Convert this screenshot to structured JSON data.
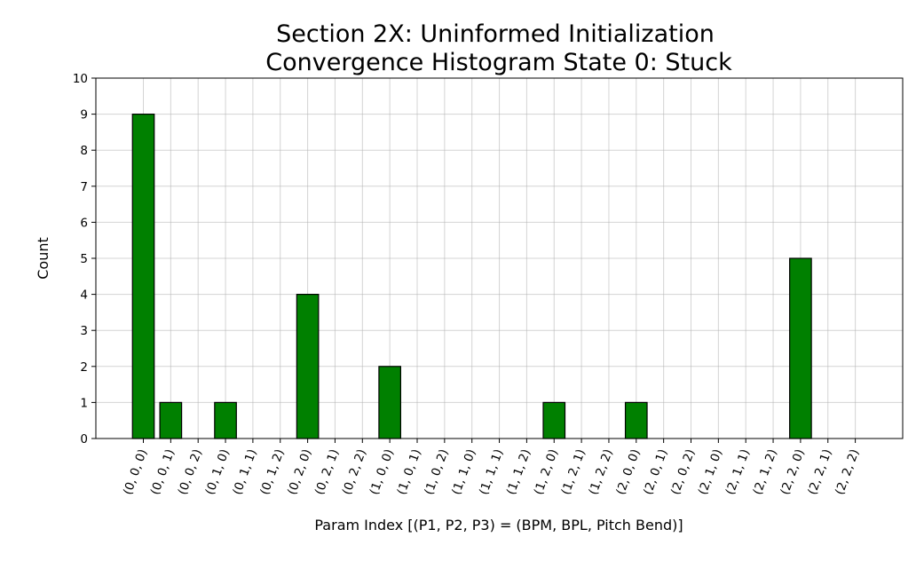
{
  "chart_data": {
    "type": "bar",
    "title": [
      "Section 2X: Uninformed Initialization",
      "Convergence Histogram State 0: Stuck"
    ],
    "xlabel": "Param Index [(P1, P2, P3) = (BPM, BPL, Pitch Bend)]",
    "ylabel": "Count",
    "ylim": [
      0,
      10
    ],
    "yticks": [
      0,
      1,
      2,
      3,
      4,
      5,
      6,
      7,
      8,
      9,
      10
    ],
    "grid": true,
    "bar_color": "#008000",
    "bar_edge_color": "#000000",
    "categories": [
      "(0, 0, 0)",
      "(0, 0, 1)",
      "(0, 0, 2)",
      "(0, 1, 0)",
      "(0, 1, 1)",
      "(0, 1, 2)",
      "(0, 2, 0)",
      "(0, 2, 1)",
      "(0, 2, 2)",
      "(1, 0, 0)",
      "(1, 0, 1)",
      "(1, 0, 2)",
      "(1, 1, 0)",
      "(1, 1, 1)",
      "(1, 1, 2)",
      "(1, 2, 0)",
      "(1, 2, 1)",
      "(1, 2, 2)",
      "(2, 0, 0)",
      "(2, 0, 1)",
      "(2, 0, 2)",
      "(2, 1, 0)",
      "(2, 1, 1)",
      "(2, 1, 2)",
      "(2, 2, 0)",
      "(2, 2, 1)",
      "(2, 2, 2)"
    ],
    "values": [
      9,
      1,
      0,
      1,
      0,
      0,
      4,
      0,
      0,
      2,
      0,
      0,
      0,
      0,
      0,
      1,
      0,
      0,
      1,
      0,
      0,
      0,
      0,
      0,
      5,
      0,
      0
    ]
  }
}
